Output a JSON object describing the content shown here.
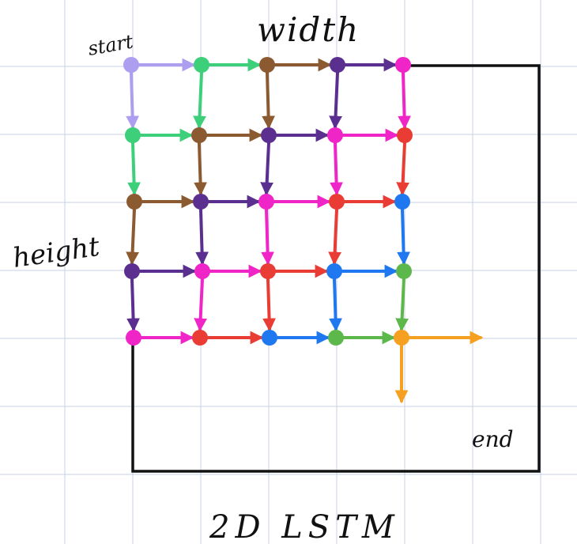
{
  "labels": {
    "title": "2D LSTM",
    "start": "start",
    "width": "width",
    "height": "height",
    "end": "end"
  },
  "palette": [
    "#ad9ef0",
    "#3ecf7a",
    "#8c5a30",
    "#5b2f8f",
    "#f025c8",
    "#e83c34",
    "#1f78f0",
    "#5cb84a",
    "#f5a020"
  ],
  "grid_color": "#c8d2e6",
  "frame_color": "#111111",
  "lattice": {
    "rows": 5,
    "cols": 5
  }
}
